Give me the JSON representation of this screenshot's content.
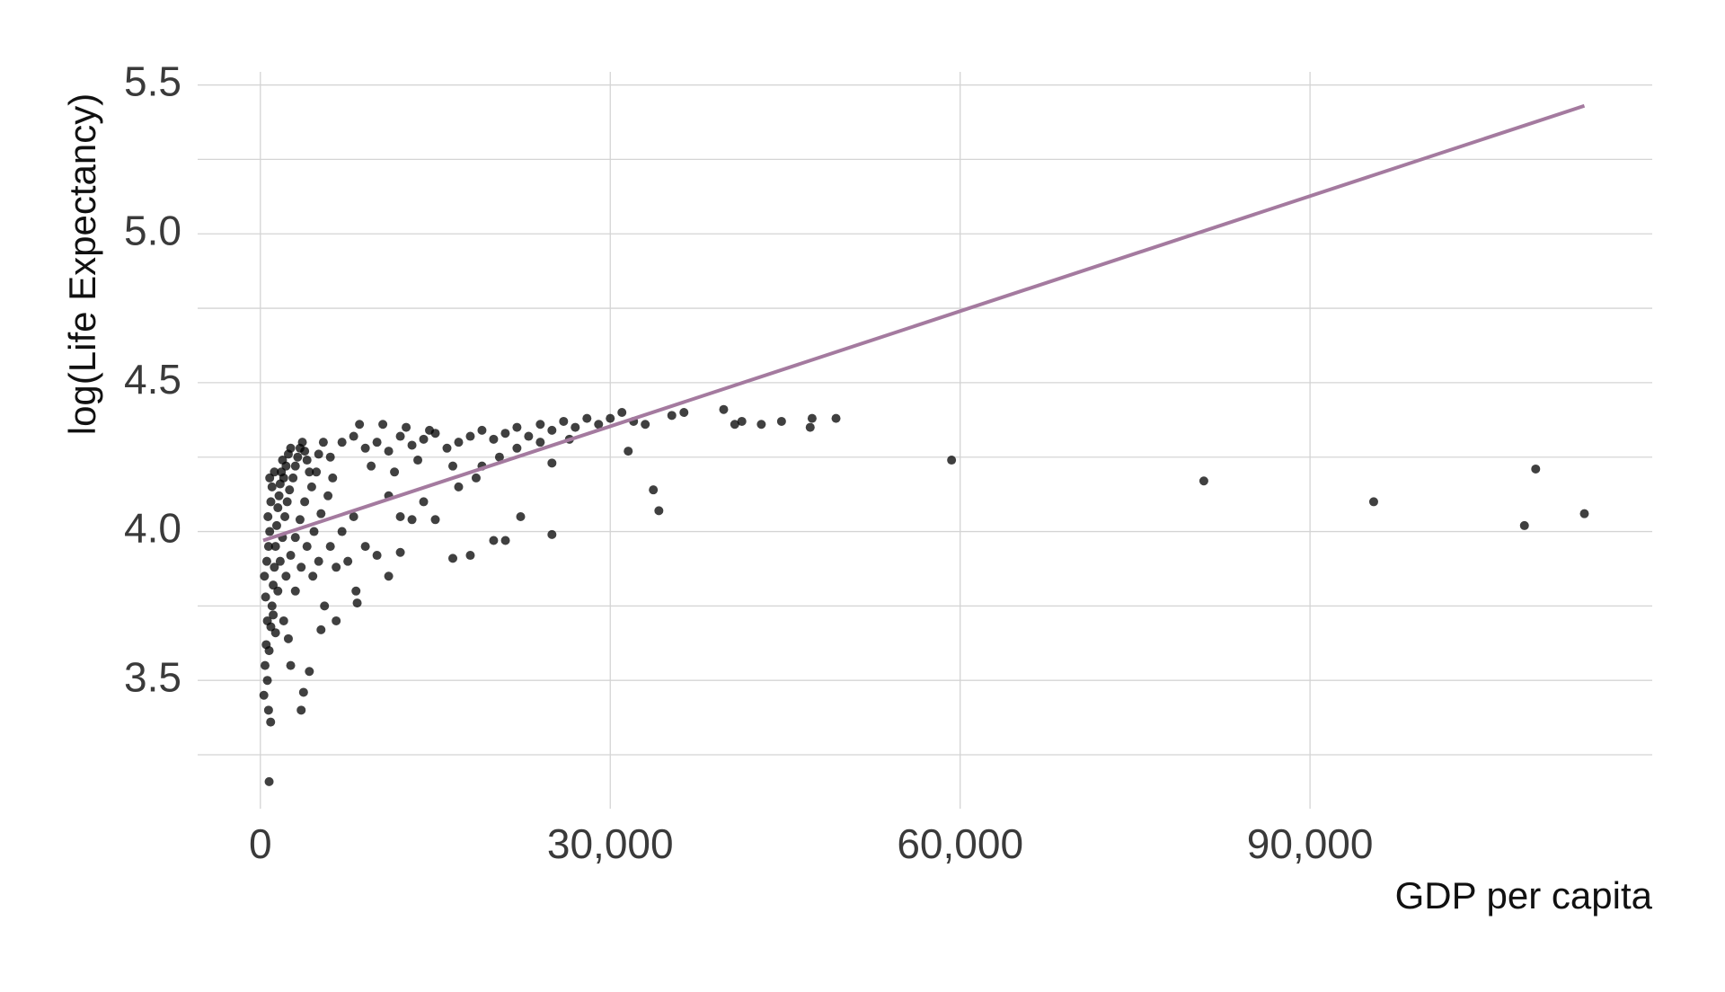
{
  "chart_data": {
    "type": "scatter",
    "xlabel": "GDP per capita",
    "ylabel": "log(Life Expectancy)",
    "xlim": [
      -5377,
      119340
    ],
    "ylim": [
      3.069,
      5.544
    ],
    "xticks": [
      0,
      {
        "value": 30000,
        "label": "30,000"
      },
      {
        "value": 60000,
        "label": "60,000"
      },
      {
        "value": 90000,
        "label": "90,000"
      }
    ],
    "yticks": [
      3.5,
      {
        "value": 4,
        "label": "4.0"
      },
      4.5,
      {
        "value": 5,
        "label": "5.0"
      },
      5.5
    ],
    "yminor": [
      3.25,
      3.75,
      4.25,
      4.75,
      5.25
    ],
    "grid": true,
    "color": "#000000",
    "x": [
      300,
      400,
      500,
      600,
      450,
      350,
      550,
      700,
      800,
      650,
      900,
      1000,
      1100,
      1200,
      1300,
      1400,
      1500,
      1600,
      1700,
      1800,
      1900,
      2000,
      2200,
      2400,
      2600,
      1000,
      1200,
      800,
      600,
      750,
      900,
      1100,
      1300,
      1500,
      1700,
      1900,
      2100,
      2300,
      2500,
      2800,
      3000,
      3200,
      3400,
      3600,
      3800,
      4000,
      4200,
      2200,
      2600,
      3000,
      3400,
      3800,
      4400,
      4800,
      5000,
      5400,
      2000,
      2400,
      3000,
      3500,
      4000,
      4600,
      5200,
      5800,
      6200,
      4500,
      5000,
      6000,
      7000,
      8000,
      9000,
      10000,
      6500,
      5500,
      7500,
      12000,
      13000,
      11000,
      14000,
      15000,
      6000,
      7000,
      8000,
      9000,
      10000,
      11000,
      12000,
      13000,
      14000,
      15000,
      16000,
      17000,
      18000,
      19000,
      20000,
      21000,
      22000,
      23000,
      24000,
      25000,
      26000,
      27000,
      28000,
      29000,
      30000,
      31000,
      32000,
      8500,
      10500,
      12500,
      14500,
      9500,
      11500,
      13500,
      16500,
      18500,
      20500,
      17000,
      19000,
      22000,
      24000,
      26500,
      59265,
      80894,
      95458,
      108382,
      109348,
      113523,
      49357,
      47306,
      47143,
      44684,
      42952,
      40676,
      39724,
      41283,
      36319,
      35278,
      34168,
      33693,
      31541,
      33000,
      25000,
      22316,
      21011,
      20000,
      18000,
      16500,
      25000,
      751,
      881,
      700,
      3500,
      3700,
      2600,
      4200,
      5200,
      6500,
      8300,
      8200,
      12000,
      11000
    ],
    "y": [
      3.45,
      3.55,
      3.62,
      3.7,
      3.78,
      3.85,
      3.9,
      3.95,
      4.0,
      4.05,
      4.1,
      3.75,
      3.82,
      3.88,
      3.95,
      4.02,
      4.08,
      4.12,
      4.16,
      4.2,
      4.24,
      4.18,
      4.22,
      4.26,
      4.28,
      4.15,
      4.2,
      4.18,
      3.5,
      3.6,
      3.68,
      3.72,
      3.66,
      3.8,
      3.9,
      3.98,
      4.05,
      4.1,
      4.14,
      4.18,
      4.22,
      4.25,
      4.28,
      4.3,
      4.27,
      4.24,
      4.2,
      3.85,
      3.92,
      3.98,
      4.04,
      4.1,
      4.15,
      4.2,
      4.26,
      4.3,
      3.7,
      3.64,
      3.8,
      3.88,
      3.95,
      4.0,
      4.06,
      4.12,
      4.18,
      3.85,
      3.9,
      3.95,
      4.0,
      4.05,
      3.95,
      3.92,
      3.88,
      3.75,
      3.9,
      4.05,
      4.04,
      4.12,
      4.1,
      4.04,
      4.25,
      4.3,
      4.32,
      4.28,
      4.3,
      4.27,
      4.32,
      4.29,
      4.31,
      4.33,
      4.28,
      4.3,
      4.32,
      4.34,
      4.31,
      4.33,
      4.35,
      4.32,
      4.36,
      4.34,
      4.37,
      4.35,
      4.38,
      4.36,
      4.38,
      4.4,
      4.37,
      4.36,
      4.36,
      4.35,
      4.34,
      4.22,
      4.2,
      4.24,
      4.22,
      4.18,
      4.25,
      4.15,
      4.22,
      4.28,
      4.3,
      4.31,
      4.24,
      4.17,
      4.1,
      4.02,
      4.21,
      4.06,
      4.38,
      4.38,
      4.35,
      4.37,
      4.36,
      4.36,
      4.41,
      4.37,
      4.4,
      4.39,
      4.07,
      4.14,
      4.27,
      4.36,
      3.99,
      4.05,
      3.97,
      3.97,
      3.92,
      3.91,
      4.23,
      3.16,
      3.36,
      3.4,
      3.4,
      3.46,
      3.55,
      3.53,
      3.67,
      3.7,
      3.76,
      3.8,
      3.93,
      3.85
    ],
    "trend": {
      "x": [
        241,
        113523
      ],
      "y": [
        3.97,
        5.43
      ],
      "color": "#a47a9f"
    }
  }
}
